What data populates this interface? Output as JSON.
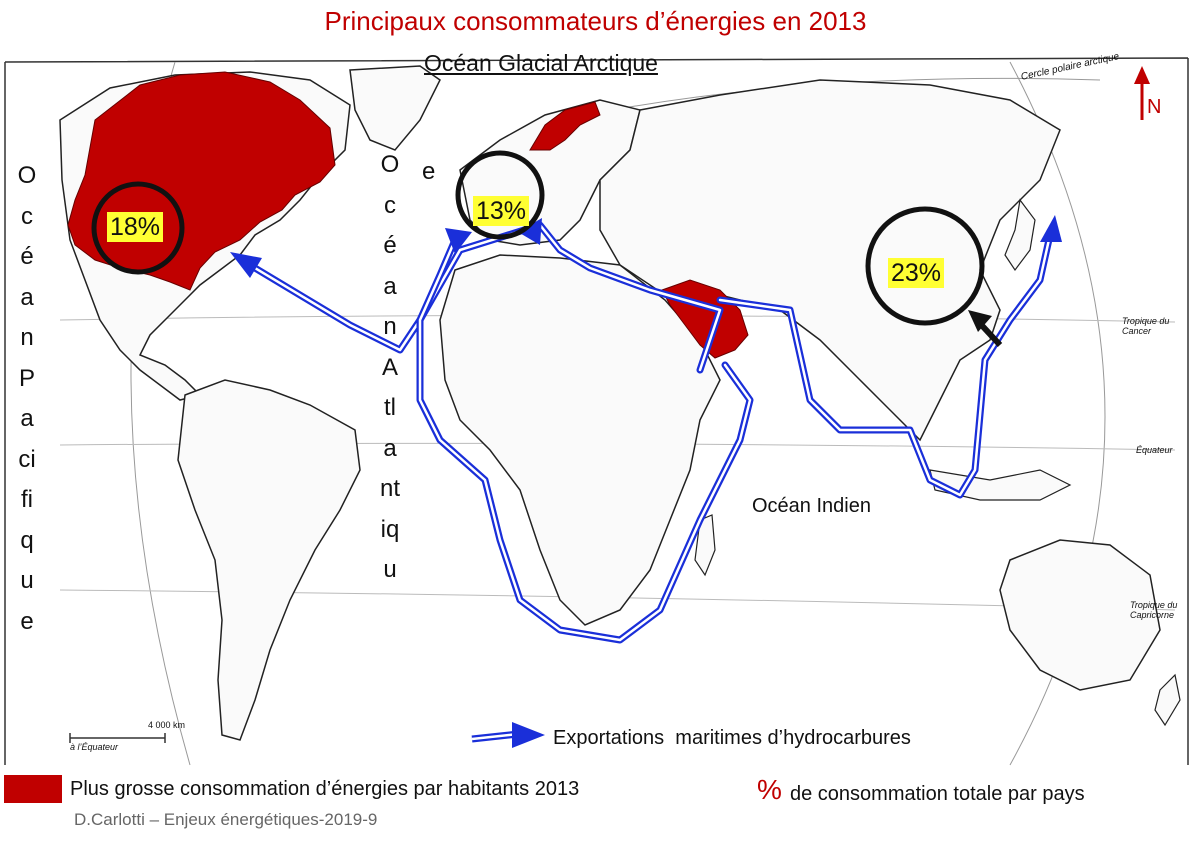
{
  "title": "Principaux consommateurs d’énergies en 2013",
  "oceans": {
    "arctic": "Océan Glacial Arctique",
    "pacific": "OcéanPacifique",
    "atlantic": "OcéanAtlantiqu",
    "atlantic_extra": "e",
    "indian": "Océan Indien"
  },
  "map_labels": {
    "arctic_circle": "Cercle polaire arctique",
    "tropic_cancer": "Tropique du Cancer",
    "equator": "Équateur",
    "tropic_capricorn": "Tropique du Capricorne",
    "scale": "4 000 km",
    "scale_note": "à l’Équateur",
    "north": "N"
  },
  "percentages": {
    "north_america": "18%",
    "europe": "13%",
    "east_asia": "23%"
  },
  "legend": {
    "routes": "Exportations  maritimes d’hydrocarbures",
    "consumption": "Plus grosse consommation d’énergies par habitants 2013",
    "percent_symbol": "%",
    "percent_text": "de consommation totale par pays"
  },
  "credit": "D.Carlotti – Enjeux énergétiques-2019-9",
  "colors": {
    "highlight": "#c00000",
    "route": "#1a2fd9",
    "percent_bg": "#ffff33"
  }
}
